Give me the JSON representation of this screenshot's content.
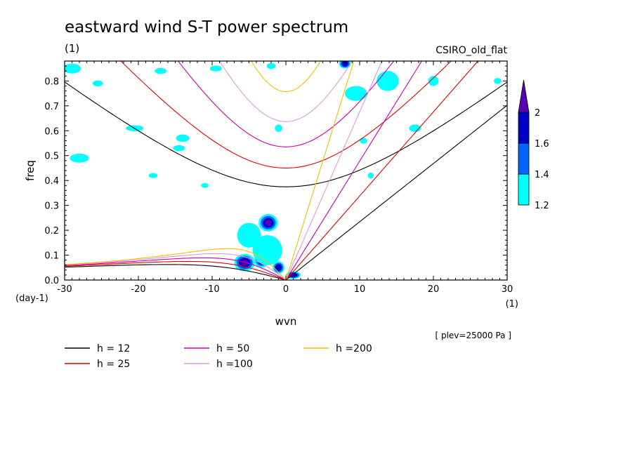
{
  "chart_data": {
    "type": "contour",
    "title": "eastward wind S-T power spectrum",
    "units_label": "(1)",
    "model": "CSIRO_old_flat",
    "xlabel": "wvn",
    "ylabel": "freq",
    "x_units": "(1)",
    "y_units": "(day-1)",
    "xlim": [
      -30,
      30
    ],
    "ylim": [
      0,
      0.88
    ],
    "x_ticks": [
      -30,
      -20,
      -10,
      0,
      10,
      20,
      30
    ],
    "x_tick_labels": [
      "-30",
      "-20",
      "-10",
      "0",
      "10",
      "20",
      "30"
    ],
    "y_ticks": [
      0,
      0.1,
      0.2,
      0.3,
      0.4,
      0.5,
      0.6,
      0.7,
      0.8
    ],
    "y_tick_labels": [
      "0.0",
      "0.1",
      "0.2",
      "0.3",
      "0.4",
      "0.5",
      "0.6",
      "0.7",
      "0.8"
    ],
    "annotation": "[ plev=25000 Pa ]",
    "colorbar": {
      "levels": [
        1.2,
        1.4,
        1.6,
        2
      ],
      "labels": [
        "1.2",
        "1.4",
        "1.6",
        "2"
      ],
      "colors": [
        "#00ffff",
        "#0064ff",
        "#0000c8",
        "#5a00b4"
      ],
      "extend": "max"
    },
    "dispersion_curves": [
      {
        "h": 12,
        "label": "h = 12",
        "color": "#000000"
      },
      {
        "h": 25,
        "label": "h = 25",
        "color": "#e00000"
      },
      {
        "h": 50,
        "label": "h = 50",
        "color": "#cc00aa"
      },
      {
        "h": 100,
        "label": "h =100",
        "color": "#dd99dd"
      },
      {
        "h": 200,
        "label": "h =200",
        "color": "#f0c000"
      }
    ],
    "power_regions": [
      {
        "x": -2.4,
        "y": 0.23,
        "rx": 1.3,
        "ry": 0.035,
        "level": 3
      },
      {
        "x": -5.6,
        "y": 0.07,
        "rx": 1.4,
        "ry": 0.035,
        "level": 3
      },
      {
        "x": -3.3,
        "y": 0.08,
        "rx": 1.0,
        "ry": 0.03,
        "level": 2
      },
      {
        "x": -1.0,
        "y": 0.05,
        "rx": 0.8,
        "ry": 0.025,
        "level": 2
      },
      {
        "x": 1.0,
        "y": 0.02,
        "rx": 1.0,
        "ry": 0.015,
        "level": 2
      },
      {
        "x": 8.0,
        "y": 0.87,
        "rx": 0.8,
        "ry": 0.02,
        "level": 2
      },
      {
        "x": -5.0,
        "y": 0.18,
        "rx": 1.6,
        "ry": 0.05,
        "level": 0
      },
      {
        "x": -2.5,
        "y": 0.12,
        "rx": 2.0,
        "ry": 0.06,
        "level": 0
      },
      {
        "x": -1.0,
        "y": 0.61,
        "rx": 0.5,
        "ry": 0.015,
        "level": 0
      },
      {
        "x": 9.5,
        "y": 0.75,
        "rx": 1.5,
        "ry": 0.03,
        "level": 0
      },
      {
        "x": 13.8,
        "y": 0.8,
        "rx": 1.5,
        "ry": 0.04,
        "level": 0
      },
      {
        "x": 17.5,
        "y": 0.61,
        "rx": 0.8,
        "ry": 0.015,
        "level": 0
      },
      {
        "x": 20.0,
        "y": 0.8,
        "rx": 0.7,
        "ry": 0.02,
        "level": 0
      },
      {
        "x": -29.0,
        "y": 0.85,
        "rx": 1.2,
        "ry": 0.02,
        "level": 0
      },
      {
        "x": -28.0,
        "y": 0.49,
        "rx": 1.3,
        "ry": 0.018,
        "level": 0
      },
      {
        "x": -14.0,
        "y": 0.57,
        "rx": 0.9,
        "ry": 0.015,
        "level": 0
      },
      {
        "x": -14.5,
        "y": 0.53,
        "rx": 0.8,
        "ry": 0.012,
        "level": 0
      },
      {
        "x": -20.5,
        "y": 0.61,
        "rx": 1.2,
        "ry": 0.012,
        "level": 0
      },
      {
        "x": -25.5,
        "y": 0.79,
        "rx": 0.7,
        "ry": 0.012,
        "level": 0
      },
      {
        "x": -17.0,
        "y": 0.84,
        "rx": 0.8,
        "ry": 0.012,
        "level": 0
      },
      {
        "x": -9.5,
        "y": 0.85,
        "rx": 0.8,
        "ry": 0.012,
        "level": 0
      },
      {
        "x": -2.0,
        "y": 0.86,
        "rx": 0.6,
        "ry": 0.012,
        "level": 0
      },
      {
        "x": 10.5,
        "y": 0.56,
        "rx": 0.5,
        "ry": 0.012,
        "level": 0
      },
      {
        "x": 11.5,
        "y": 0.42,
        "rx": 0.4,
        "ry": 0.012,
        "level": 0
      },
      {
        "x": 28.7,
        "y": 0.8,
        "rx": 0.5,
        "ry": 0.012,
        "level": 0
      },
      {
        "x": -18.0,
        "y": 0.42,
        "rx": 0.6,
        "ry": 0.01,
        "level": 0
      },
      {
        "x": -11.0,
        "y": 0.38,
        "rx": 0.5,
        "ry": 0.01,
        "level": 0
      }
    ]
  }
}
